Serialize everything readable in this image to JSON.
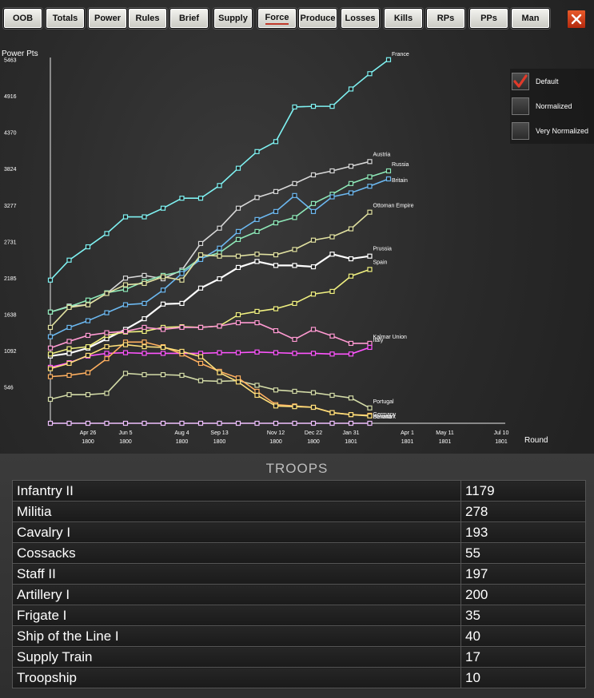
{
  "toolbar": {
    "buttons": [
      "OOB",
      "Totals",
      "Power",
      "Rules",
      "Brief",
      "Supply",
      "Force",
      "Produce",
      "Losses",
      "Kills",
      "RPs",
      "PPs",
      "Man"
    ],
    "active": "Force"
  },
  "chart_data": {
    "type": "line",
    "ylabel": "Power Pts",
    "xlabel": "Round",
    "yticks": [
      "5463",
      "4916",
      "4370",
      "3824",
      "3277",
      "2731",
      "2185",
      "1638",
      "1092",
      "546"
    ],
    "ylim": [
      0,
      5600
    ],
    "x_ticks": [
      {
        "x": 2,
        "date": "Apr 26",
        "year": "1800"
      },
      {
        "x": 4,
        "date": "Jun 5",
        "year": "1800"
      },
      {
        "x": 7,
        "date": "Aug 4",
        "year": "1800"
      },
      {
        "x": 9,
        "date": "Sep 13",
        "year": "1800"
      },
      {
        "x": 12,
        "date": "Nov 12",
        "year": "1800"
      },
      {
        "x": 14,
        "date": "Dec 22",
        "year": "1800"
      },
      {
        "x": 16,
        "date": "Jan 31",
        "year": "1801"
      },
      {
        "x": 19,
        "date": "Apr 1",
        "year": "1801"
      },
      {
        "x": 21,
        "date": "May 11",
        "year": "1801"
      },
      {
        "x": 24,
        "date": "Jul 10",
        "year": "1801"
      }
    ],
    "series": [
      {
        "name": "France",
        "color": "#7ff2f2",
        "values": [
          2150,
          2450,
          2650,
          2850,
          3100,
          3100,
          3230,
          3380,
          3380,
          3570,
          3830,
          4080,
          4230,
          4750,
          4760,
          4760,
          5020,
          5250,
          5460
        ]
      },
      {
        "name": "Austria",
        "color": "#d8d8d8",
        "values": [
          1670,
          1760,
          1780,
          1950,
          2180,
          2220,
          2170,
          2300,
          2700,
          2930,
          3230,
          3390,
          3480,
          3600,
          3730,
          3790,
          3860,
          3930
        ]
      },
      {
        "name": "Russia",
        "color": "#8ee8b8",
        "values": [
          1670,
          1750,
          1850,
          1960,
          2010,
          2130,
          2220,
          2280,
          2480,
          2560,
          2760,
          2880,
          3010,
          3090,
          3300,
          3440,
          3600,
          3700,
          3790
        ]
      },
      {
        "name": "Britain",
        "color": "#6cb8f0",
        "values": [
          1300,
          1440,
          1540,
          1660,
          1780,
          1800,
          2000,
          2250,
          2460,
          2630,
          2880,
          3060,
          3180,
          3420,
          3180,
          3400,
          3460,
          3560,
          3670
        ]
      },
      {
        "name": "Ottoman Empire",
        "color": "#e0e0a0",
        "values": [
          1440,
          1740,
          1780,
          1950,
          2080,
          2100,
          2200,
          2150,
          2530,
          2510,
          2510,
          2540,
          2530,
          2610,
          2750,
          2800,
          2920,
          3170
        ]
      },
      {
        "name": "Prussia",
        "color": "#ffffff",
        "values": [
          1010,
          1050,
          1130,
          1270,
          1410,
          1570,
          1790,
          1800,
          2030,
          2170,
          2340,
          2430,
          2370,
          2370,
          2350,
          2540,
          2470,
          2510
        ]
      },
      {
        "name": "Spain",
        "color": "#f0f080",
        "values": [
          1040,
          1120,
          1150,
          1320,
          1370,
          1380,
          1440,
          1450,
          1440,
          1460,
          1630,
          1680,
          1720,
          1800,
          1940,
          1980,
          2210,
          2310
        ]
      },
      {
        "name": "Kalmar Union",
        "color": "#ff9ad2",
        "values": [
          1130,
          1230,
          1320,
          1360,
          1380,
          1440,
          1410,
          1440,
          1440,
          1460,
          1510,
          1510,
          1390,
          1260,
          1410,
          1310,
          1200,
          1200
        ]
      },
      {
        "name": "Italy",
        "color": "#ff55ff",
        "values": [
          840,
          910,
          1010,
          1050,
          1060,
          1050,
          1050,
          1050,
          1050,
          1060,
          1060,
          1070,
          1060,
          1050,
          1050,
          1040,
          1040,
          1140
        ]
      },
      {
        "name": "Portugal",
        "color": "#d4dca8",
        "values": [
          360,
          430,
          430,
          450,
          750,
          730,
          730,
          720,
          640,
          630,
          640,
          570,
          500,
          480,
          460,
          420,
          380,
          230
        ]
      },
      {
        "name": "Germany",
        "color": "#ffb060",
        "values": [
          700,
          720,
          760,
          970,
          1220,
          1220,
          1150,
          1040,
          900,
          780,
          680,
          480,
          280,
          260,
          240,
          160,
          130,
          120
        ]
      },
      {
        "name": "Bavaria",
        "color": "#ffe07a",
        "values": [
          820,
          900,
          1020,
          1150,
          1180,
          1150,
          1140,
          1080,
          1000,
          760,
          620,
          420,
          260,
          250,
          240,
          160,
          130,
          110
        ]
      },
      {
        "name": "Denmark",
        "color": "#f0c0ff",
        "values": [
          0,
          0,
          0,
          0,
          0,
          0,
          0,
          0,
          0,
          0,
          0,
          0,
          0,
          0,
          0,
          0,
          0,
          0
        ]
      }
    ]
  },
  "options": {
    "items": [
      {
        "label": "Default",
        "checked": true
      },
      {
        "label": "Normalized",
        "checked": false
      },
      {
        "label": "Very Normalized",
        "checked": false
      }
    ]
  },
  "troops": {
    "title": "TROOPS",
    "rows": [
      {
        "name": "Infantry II",
        "count": "1179"
      },
      {
        "name": "Militia",
        "count": "278"
      },
      {
        "name": "Cavalry I",
        "count": "193"
      },
      {
        "name": "Cossacks",
        "count": "55"
      },
      {
        "name": "Staff II",
        "count": "197"
      },
      {
        "name": "Artillery I",
        "count": "200"
      },
      {
        "name": "Frigate I",
        "count": "35"
      },
      {
        "name": "Ship of the Line I",
        "count": "40"
      },
      {
        "name": "Supply Train",
        "count": "17"
      },
      {
        "name": "Troopship",
        "count": "10"
      }
    ]
  }
}
